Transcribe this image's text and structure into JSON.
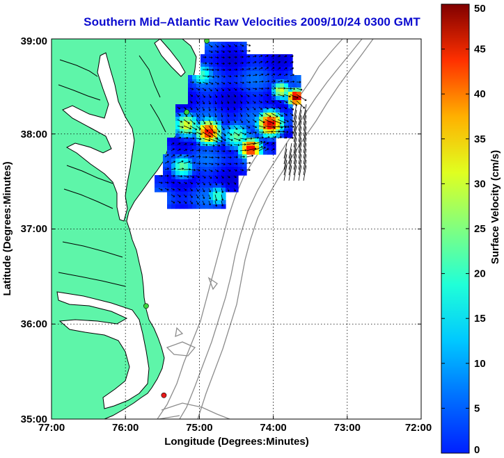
{
  "title": "Southern Mid–Atlantic Raw Velocities 2009/10/24 0300 GMT",
  "map": {
    "xlabel": "Longitude (Degrees:Minutes)",
    "ylabel": "Latitude (Degrees:Minutes)",
    "lon_ticks": [
      "77:00",
      "76:00",
      "75:00",
      "74:00",
      "73:00",
      "72:00"
    ],
    "lat_ticks": [
      "35:00",
      "36:00",
      "37:00",
      "38:00",
      "39:00"
    ],
    "lon_range_west": [
      77,
      72
    ],
    "lat_range": [
      35,
      39
    ],
    "grid": "dotted",
    "colors": {
      "land": "#5ef5a9",
      "coast": "#000000",
      "bathymetry": "#8c8c8c",
      "grid": "#000000"
    },
    "stations": [
      {
        "lon_w": 74.9,
        "lat": 38.98,
        "color": "#3bd43b"
      },
      {
        "lon_w": 75.17,
        "lat": 38.23,
        "color": "#3bd43b"
      },
      {
        "lon_w": 75.72,
        "lat": 36.19,
        "color": "#3bd43b"
      },
      {
        "lon_w": 75.48,
        "lat": 35.25,
        "color": "#e81a1a"
      }
    ]
  },
  "colorbar": {
    "label": "Surface Velocity (cm/s)",
    "ticks": [
      "0",
      "5",
      "10",
      "15",
      "20",
      "25",
      "30",
      "35",
      "40",
      "45",
      "50"
    ],
    "range": [
      0,
      50
    ],
    "colormap": "jet"
  }
}
